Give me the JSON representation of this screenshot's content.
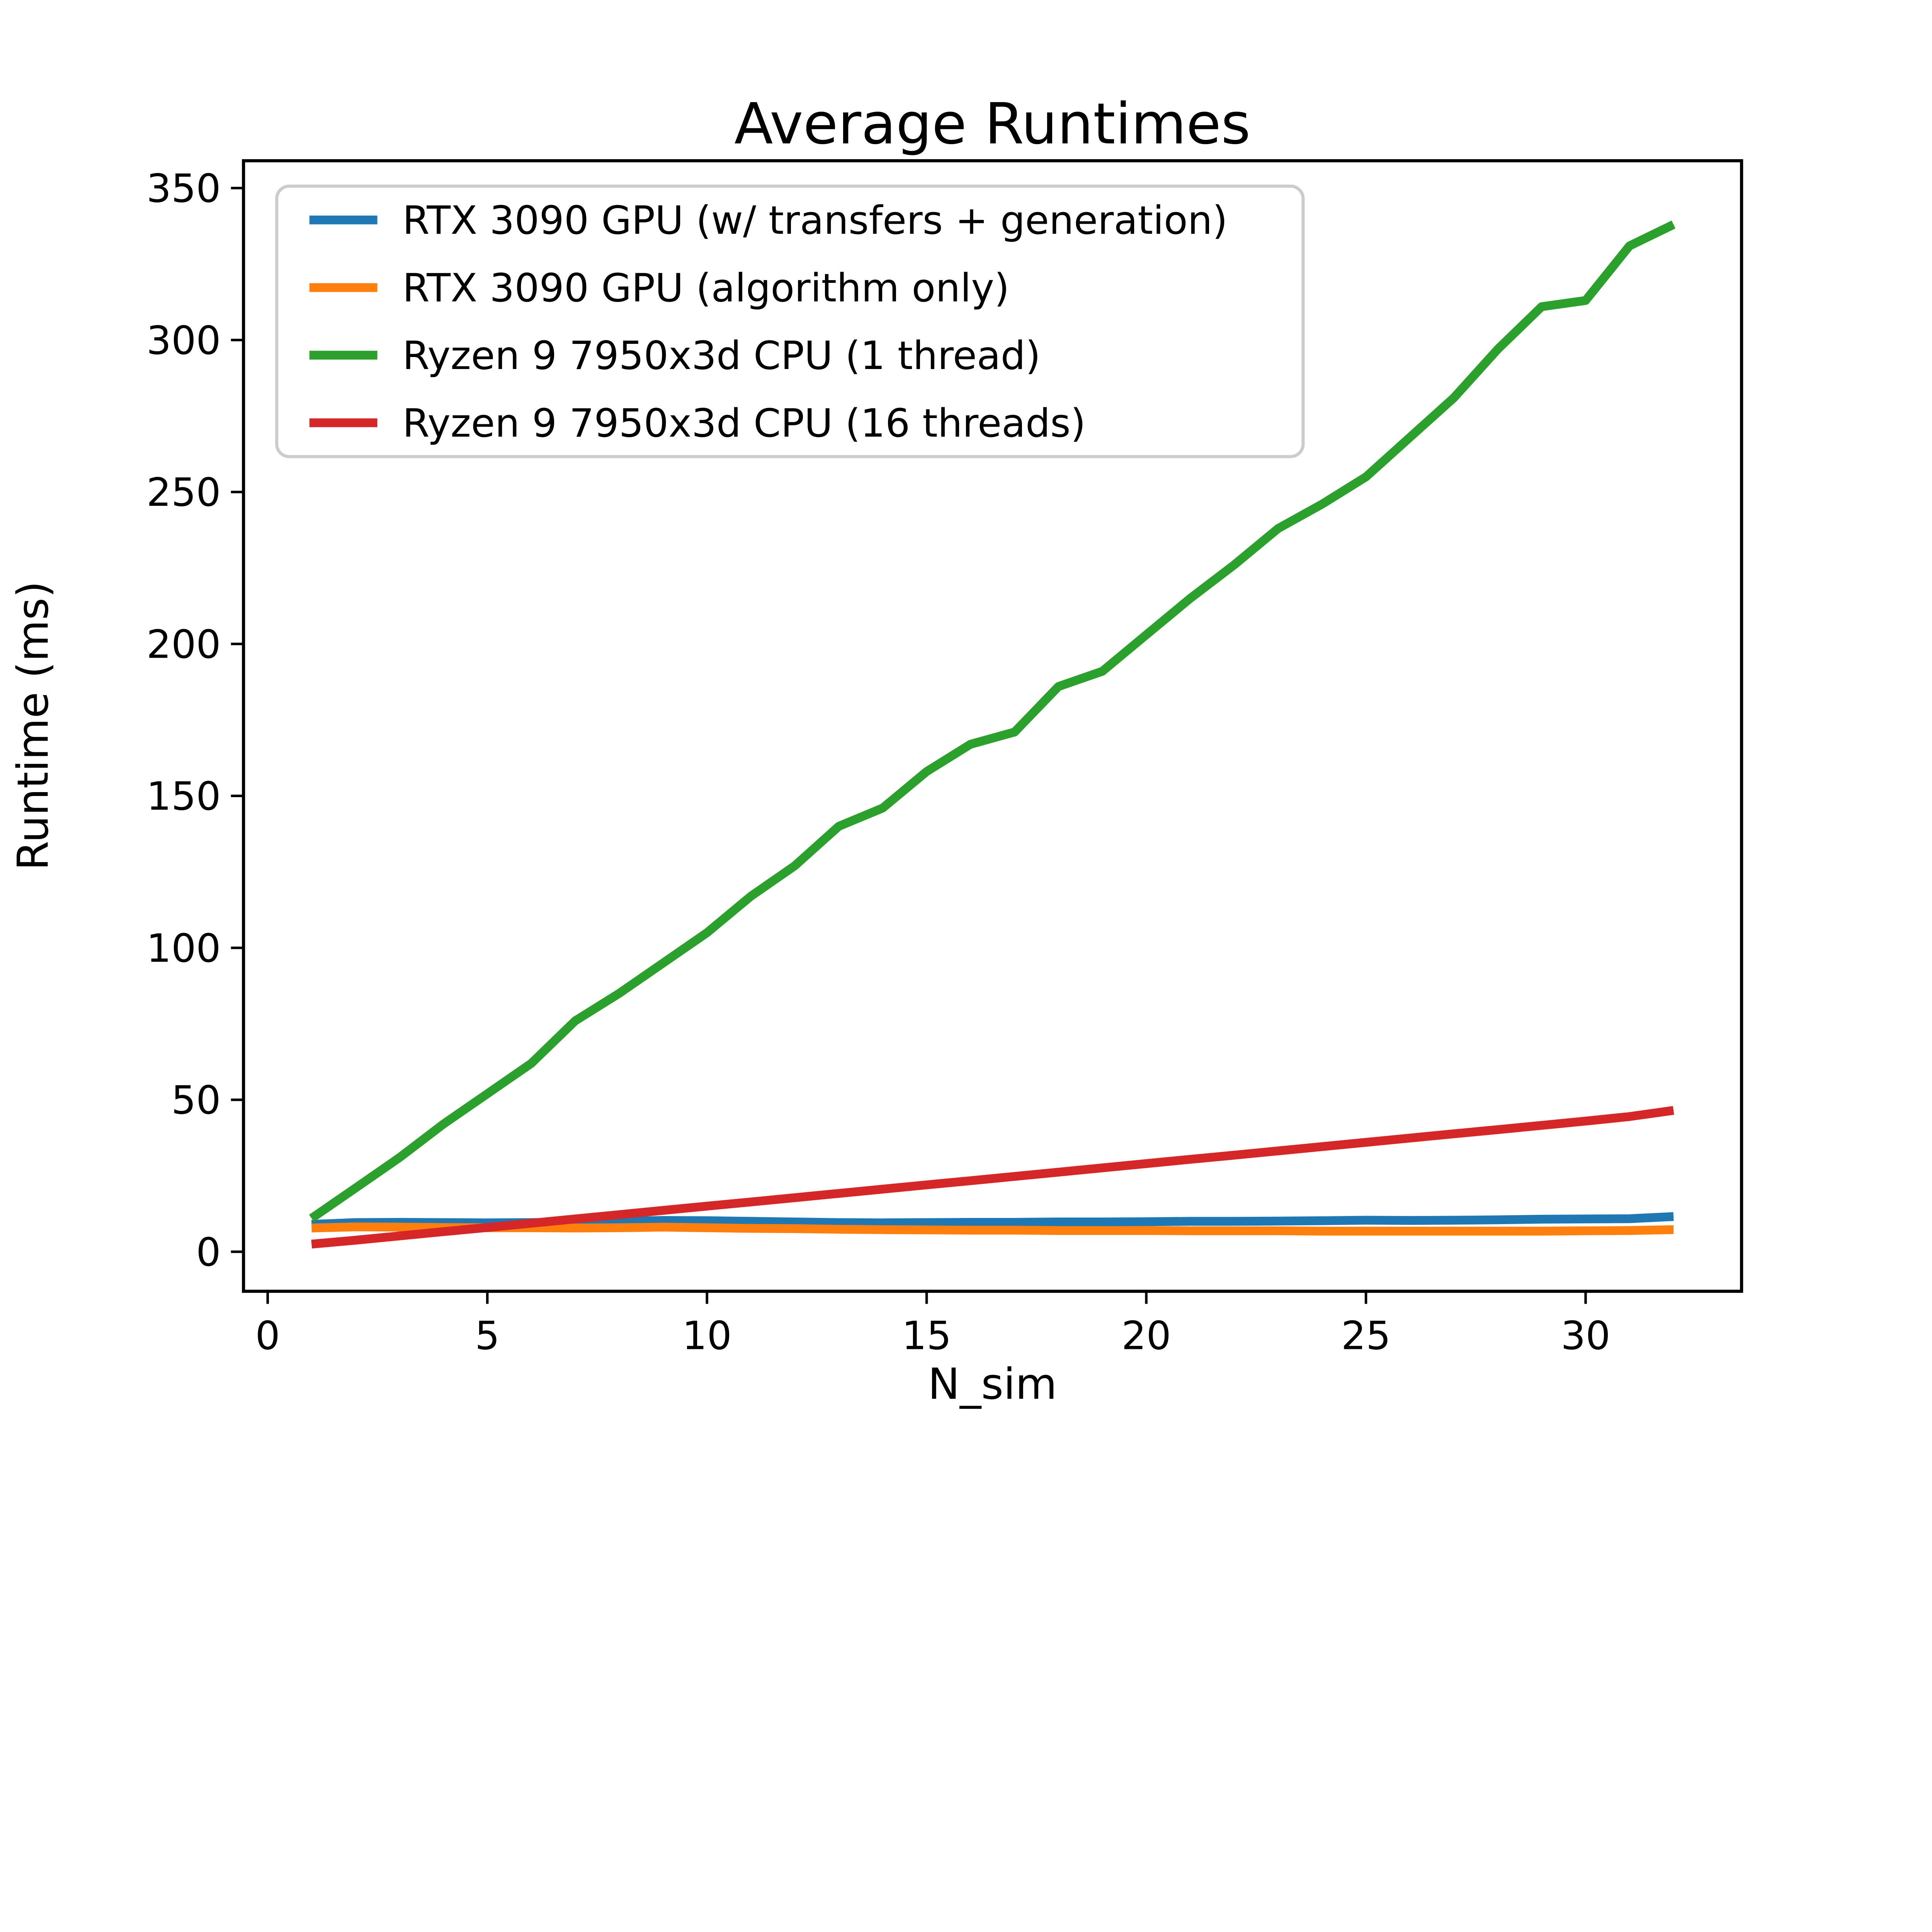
{
  "chart_data": {
    "type": "line",
    "title": "Average Runtimes",
    "xlabel": "N_sim",
    "ylabel": "Runtime (ms)",
    "grid": false,
    "legend_position": "upper left",
    "x_ticks": [
      0,
      5,
      10,
      15,
      20,
      25,
      30
    ],
    "y_ticks": [
      0,
      50,
      100,
      150,
      200,
      250,
      300,
      350
    ],
    "xlim": [
      -0.55,
      33.55
    ],
    "ylim": [
      -13,
      359
    ],
    "x": [
      1,
      2,
      3,
      4,
      5,
      6,
      7,
      8,
      9,
      10,
      11,
      12,
      13,
      14,
      15,
      16,
      17,
      18,
      19,
      20,
      21,
      22,
      23,
      24,
      25,
      26,
      27,
      28,
      29,
      30,
      31,
      32
    ],
    "series": [
      {
        "name": "RTX 3090 GPU (w/ transfers + generation)",
        "color": "#1f77b4",
        "values": [
          9,
          9.6,
          9.7,
          9.6,
          9.5,
          9.6,
          9.8,
          10,
          10.3,
          10.2,
          10,
          9.8,
          9.6,
          9.5,
          9.6,
          9.7,
          9.7,
          9.8,
          9.8,
          9.9,
          10,
          10,
          10.1,
          10.2,
          10.4,
          10.3,
          10.4,
          10.5,
          10.7,
          10.8,
          10.9,
          11.6
        ]
      },
      {
        "name": "RTX 3090 GPU (algorithm only)",
        "color": "#ff7f0e",
        "values": [
          7.8,
          8.2,
          8.1,
          8,
          7.9,
          7.9,
          7.8,
          7.9,
          8.1,
          7.9,
          7.7,
          7.6,
          7.4,
          7.3,
          7.2,
          7.1,
          7.1,
          7,
          7,
          7,
          6.9,
          6.9,
          6.9,
          6.8,
          6.8,
          6.8,
          6.8,
          6.8,
          6.8,
          6.9,
          7,
          7.3
        ]
      },
      {
        "name": "Ryzen 9 7950x3d CPU (1 thread)",
        "color": "#2ca02c",
        "values": [
          11,
          21,
          31,
          42,
          52,
          62,
          76,
          85,
          95,
          105,
          117,
          127,
          140,
          146,
          158,
          167,
          171,
          186,
          191,
          203,
          215,
          226,
          238,
          246,
          255,
          268,
          281,
          297,
          311,
          313,
          331,
          338
        ]
      },
      {
        "name": "Ryzen 9 7950x3d CPU (16 threads)",
        "color": "#d62728",
        "values": [
          2.5,
          3.8,
          5.2,
          6.6,
          8,
          9.4,
          10.8,
          12.2,
          13.6,
          15,
          16.4,
          17.8,
          19.2,
          20.6,
          22,
          23.4,
          24.8,
          26.2,
          27.6,
          29,
          30.4,
          31.8,
          33.2,
          34.6,
          36,
          37.4,
          38.8,
          40.2,
          41.6,
          43,
          44.5,
          46.5
        ]
      }
    ]
  },
  "style": {
    "line_width": 7,
    "spine_color": "#000000",
    "legend_border_color": "#cccccc",
    "legend_background": "#ffffff"
  }
}
